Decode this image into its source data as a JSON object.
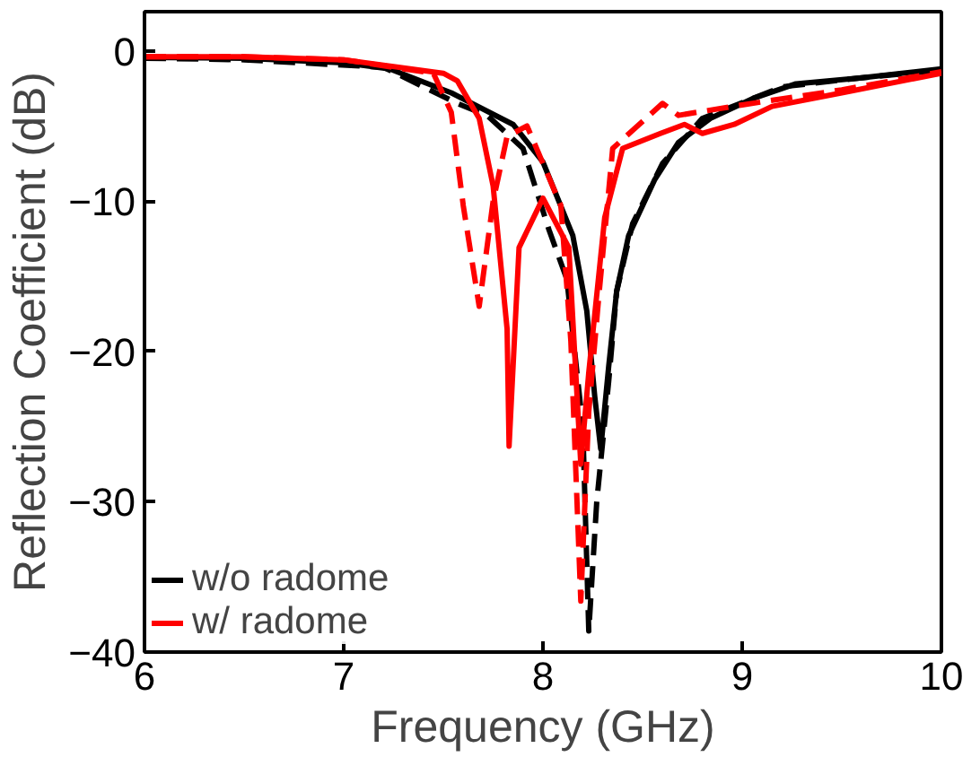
{
  "chart_data": {
    "type": "line",
    "xlabel": "Frequency (GHz)",
    "ylabel": "Reflection Coefficient (dB)",
    "xlim": [
      6,
      10
    ],
    "ylim": [
      -40,
      2.6
    ],
    "xticks": [
      6,
      7,
      8,
      9,
      10
    ],
    "yticks": [
      -40,
      -30,
      -20,
      -10,
      0
    ],
    "grid": false,
    "legend": "bottom left",
    "series": [
      {
        "name": "w/o radome",
        "color": "#000000",
        "line_style": "solid",
        "x": [
          6.0,
          6.5,
          7.0,
          7.23,
          7.54,
          7.85,
          8.0,
          8.15,
          8.22,
          8.26,
          8.29,
          8.33,
          8.37,
          8.43,
          8.56,
          8.68,
          8.84,
          9.05,
          9.27,
          9.6,
          10.0
        ],
        "values": [
          -0.45,
          -0.5,
          -0.8,
          -1.2,
          -2.8,
          -4.9,
          -7.4,
          -12.3,
          -17.3,
          -23,
          -26.5,
          -21,
          -16,
          -12.3,
          -8.6,
          -6.1,
          -4.5,
          -3.2,
          -2.2,
          -1.8,
          -1.2
        ]
      },
      {
        "color": "#000000",
        "line_style": "dashed",
        "x": [
          6.0,
          6.5,
          7.2,
          7.57,
          7.72,
          7.9,
          8.03,
          8.12,
          8.2,
          8.23,
          8.27,
          8.33,
          8.37,
          8.45,
          8.6,
          8.8,
          9.2,
          9.6,
          10.0
        ],
        "values": [
          -0.5,
          -0.6,
          -1.1,
          -3.5,
          -4.3,
          -6.5,
          -11.9,
          -15.2,
          -25,
          -38.6,
          -30,
          -22,
          -16,
          -11.5,
          -7.5,
          -4.5,
          -2.4,
          -1.8,
          -1.3
        ]
      },
      {
        "name": "w/ radome",
        "color": "#ff0000",
        "line_style": "solid",
        "x": [
          6.0,
          6.5,
          7.0,
          7.5,
          7.57,
          7.68,
          7.75,
          7.82,
          7.83,
          7.88,
          8.0,
          8.13,
          8.19,
          8.23,
          8.31,
          8.4,
          8.59,
          8.71,
          8.8,
          8.96,
          9.15,
          9.5,
          10.0
        ],
        "values": [
          -0.4,
          -0.4,
          -0.6,
          -1.5,
          -2,
          -4.5,
          -9,
          -18.5,
          -26.3,
          -13.1,
          -9.8,
          -13.1,
          -27.5,
          -21.4,
          -11.1,
          -6.5,
          -5.5,
          -4.9,
          -5.5,
          -4.9,
          -3.7,
          -2.8,
          -1.5
        ]
      },
      {
        "color": "#ff0000",
        "line_style": "dashed",
        "x": [
          6.0,
          6.5,
          7.0,
          7.45,
          7.54,
          7.6,
          7.68,
          7.75,
          7.82,
          7.92,
          8.09,
          8.14,
          8.19,
          8.23,
          8.28,
          8.35,
          8.6,
          8.68,
          9.0,
          9.5,
          10.0
        ],
        "values": [
          -0.4,
          -0.4,
          -0.6,
          -1.5,
          -4.1,
          -10.3,
          -17,
          -10,
          -5.7,
          -5,
          -10.3,
          -19.3,
          -36.6,
          -24,
          -16.4,
          -6.5,
          -3.5,
          -4.3,
          -3.6,
          -2.6,
          -1.4
        ]
      }
    ]
  }
}
